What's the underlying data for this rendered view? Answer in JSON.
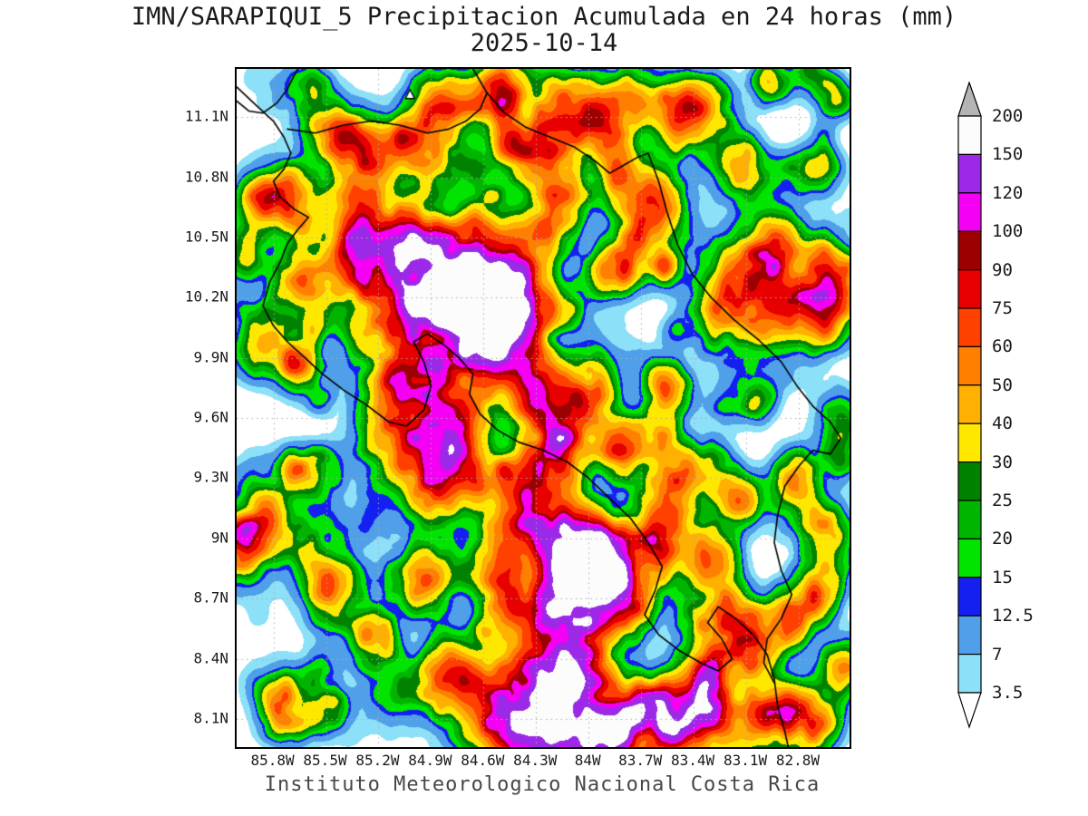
{
  "title": {
    "line1": "IMN/SARAPIQUI_5 Precipitacion Acumulada en 24 horas (mm)",
    "line2": "2025-10-14"
  },
  "footer": {
    "text": "Instituto Meteorologico Nacional Costa Rica"
  },
  "chart_data": {
    "type": "heatmap",
    "units": "mm",
    "variable": "Precipitacion Acumulada en 24 horas",
    "date": "2025-10-14",
    "source": "IMN/SARAPIQUI_5",
    "lon_range_w": [
      86.01,
      82.51
    ],
    "lat_range_n": [
      7.96,
      11.34
    ],
    "x_axis": {
      "values": [
        85.8,
        85.5,
        85.2,
        84.9,
        84.6,
        84.3,
        84.0,
        83.7,
        83.4,
        83.1,
        82.8
      ],
      "labels": [
        "85.8W",
        "85.5W",
        "85.2W",
        "84.9W",
        "84.6W",
        "84.3W",
        "84W",
        "83.7W",
        "83.4W",
        "83.1W",
        "82.8W"
      ]
    },
    "y_axis": {
      "values": [
        11.1,
        10.8,
        10.5,
        10.2,
        9.9,
        9.6,
        9.3,
        9.0,
        8.7,
        8.4,
        8.1
      ],
      "labels": [
        "11.1N",
        "10.8N",
        "10.5N",
        "10.2N",
        "9.9N",
        "9.6N",
        "9.3N",
        "9N",
        "8.7N",
        "8.4N",
        "8.1N"
      ]
    },
    "colorbar": {
      "levels": [
        3.5,
        7,
        12.5,
        15,
        20,
        25,
        30,
        40,
        50,
        60,
        75,
        90,
        100,
        120,
        150,
        200
      ],
      "band_colors": [
        "#8CE0F8",
        "#4FA0E8",
        "#1420F0",
        "#00E400",
        "#00B400",
        "#008200",
        "#FFE800",
        "#FFB000",
        "#FF8000",
        "#FF4000",
        "#E80000",
        "#9C0000",
        "#F400F4",
        "#9C28E8",
        "#FCFCFC"
      ],
      "above_color": "#B4B4B4",
      "below_color": "#FFFFFF"
    },
    "storm_cells": [
      [
        85.35,
        11.0,
        50,
        0.1
      ],
      [
        85.3,
        10.82,
        62,
        0.11
      ],
      [
        85.1,
        10.95,
        40,
        0.1
      ],
      [
        84.9,
        10.9,
        55,
        0.12
      ],
      [
        84.85,
        11.15,
        62,
        0.11
      ],
      [
        84.6,
        11.2,
        48,
        0.1
      ],
      [
        84.45,
        11.25,
        58,
        0.1
      ],
      [
        84.35,
        10.95,
        55,
        0.12
      ],
      [
        84.2,
        11.15,
        48,
        0.1
      ],
      [
        83.95,
        11.1,
        62,
        0.12
      ],
      [
        83.75,
        11.2,
        55,
        0.1
      ],
      [
        83.5,
        11.05,
        46,
        0.1
      ],
      [
        83.3,
        11.15,
        40,
        0.1
      ],
      [
        83.15,
        10.85,
        36,
        0.1
      ],
      [
        83.8,
        10.8,
        46,
        0.12
      ],
      [
        83.65,
        10.6,
        34,
        0.1
      ],
      [
        85.25,
        10.45,
        68,
        0.16
      ],
      [
        85.05,
        10.38,
        80,
        0.16
      ],
      [
        84.95,
        10.15,
        95,
        0.22
      ],
      [
        84.75,
        10.25,
        72,
        0.18
      ],
      [
        84.65,
        10.05,
        78,
        0.16
      ],
      [
        84.55,
        10.3,
        60,
        0.13
      ],
      [
        84.5,
        9.95,
        72,
        0.16
      ],
      [
        84.45,
        10.15,
        85,
        0.13
      ],
      [
        84.3,
        10.5,
        42,
        0.12
      ],
      [
        84.15,
        10.7,
        50,
        0.1
      ],
      [
        85.6,
        10.3,
        30,
        0.1
      ],
      [
        85.75,
        10.7,
        38,
        0.1
      ],
      [
        85.95,
        10.5,
        26,
        0.09
      ],
      [
        83.1,
        10.3,
        72,
        0.14
      ],
      [
        82.9,
        10.45,
        58,
        0.11
      ],
      [
        82.85,
        10.2,
        64,
        0.12
      ],
      [
        83.25,
        10.15,
        48,
        0.1
      ],
      [
        82.6,
        10.35,
        44,
        0.1
      ],
      [
        82.6,
        10.08,
        34,
        0.09
      ],
      [
        85.05,
        9.75,
        52,
        0.11
      ],
      [
        85.0,
        9.55,
        80,
        0.17
      ],
      [
        84.85,
        9.35,
        70,
        0.15
      ],
      [
        84.7,
        9.5,
        50,
        0.11
      ],
      [
        85.65,
        9.85,
        30,
        0.09
      ],
      [
        85.55,
        9.3,
        26,
        0.09
      ],
      [
        85.45,
        8.75,
        34,
        0.11
      ],
      [
        85.2,
        8.45,
        30,
        0.1
      ],
      [
        84.95,
        8.75,
        42,
        0.11
      ],
      [
        84.25,
        9.7,
        72,
        0.13
      ],
      [
        84.2,
        9.45,
        54,
        0.11
      ],
      [
        84.3,
        9.2,
        50,
        0.13
      ],
      [
        84.15,
        9.0,
        58,
        0.13
      ],
      [
        84.05,
        9.55,
        44,
        0.1
      ],
      [
        83.95,
        9.8,
        38,
        0.09
      ],
      [
        83.55,
        9.75,
        58,
        0.08
      ],
      [
        84.5,
        9.0,
        36,
        0.11
      ],
      [
        84.45,
        8.7,
        40,
        0.11
      ],
      [
        84.02,
        8.82,
        168,
        0.13
      ],
      [
        84.1,
        8.6,
        90,
        0.15
      ],
      [
        83.85,
        8.7,
        95,
        0.13
      ],
      [
        84.2,
        8.35,
        78,
        0.13
      ],
      [
        83.92,
        8.95,
        72,
        0.12
      ],
      [
        84.75,
        8.3,
        48,
        0.11
      ],
      [
        84.55,
        8.15,
        66,
        0.13
      ],
      [
        84.35,
        8.05,
        88,
        0.15
      ],
      [
        84.15,
        8.1,
        105,
        0.13
      ],
      [
        83.95,
        8.0,
        112,
        0.13
      ],
      [
        83.7,
        8.1,
        88,
        0.13
      ],
      [
        83.52,
        8.12,
        105,
        0.11
      ],
      [
        83.35,
        8.15,
        68,
        0.11
      ],
      [
        83.2,
        8.05,
        46,
        0.13
      ],
      [
        82.95,
        8.1,
        40,
        0.11
      ],
      [
        82.75,
        8.1,
        72,
        0.11
      ],
      [
        82.55,
        8.35,
        42,
        0.09
      ],
      [
        83.25,
        8.55,
        72,
        0.13
      ],
      [
        83.05,
        8.45,
        58,
        0.11
      ],
      [
        83.3,
        8.3,
        52,
        0.11
      ],
      [
        82.85,
        8.6,
        44,
        0.09
      ],
      [
        82.7,
        8.72,
        50,
        0.09
      ],
      [
        83.35,
        9.35,
        44,
        0.1
      ],
      [
        83.15,
        9.2,
        40,
        0.09
      ],
      [
        82.8,
        9.3,
        48,
        0.09
      ],
      [
        82.65,
        9.05,
        42,
        0.09
      ],
      [
        83.5,
        9.3,
        34,
        0.09
      ],
      [
        83.3,
        8.95,
        38,
        0.09
      ],
      [
        82.55,
        9.6,
        30,
        0.09
      ],
      [
        83.05,
        9.7,
        28,
        0.08
      ],
      [
        83.8,
        10.35,
        34,
        0.09
      ]
    ],
    "speckle": {
      "seed": 20251014,
      "count": 240,
      "amp_min": 3,
      "amp_max": 42,
      "r_min": 0.045,
      "r_max": 0.12
    },
    "noise": {
      "seed": 7,
      "scale1": 6,
      "scale2": 14
    },
    "coastlines": [
      [
        [
          86.01,
          11.25
        ],
        [
          85.9,
          11.16
        ],
        [
          85.8,
          11.08
        ],
        [
          85.74,
          11.0
        ],
        [
          85.7,
          10.92
        ],
        [
          85.74,
          10.84
        ],
        [
          85.8,
          10.78
        ],
        [
          85.76,
          10.7
        ],
        [
          85.68,
          10.64
        ],
        [
          85.6,
          10.6
        ],
        [
          85.66,
          10.54
        ],
        [
          85.72,
          10.47
        ],
        [
          85.76,
          10.38
        ],
        [
          85.82,
          10.28
        ],
        [
          85.86,
          10.16
        ],
        [
          85.8,
          10.06
        ],
        [
          85.72,
          9.98
        ],
        [
          85.62,
          9.9
        ],
        [
          85.52,
          9.82
        ],
        [
          85.4,
          9.74
        ],
        [
          85.26,
          9.66
        ],
        [
          85.14,
          9.58
        ],
        [
          85.04,
          9.56
        ],
        [
          84.94,
          9.64
        ],
        [
          84.9,
          9.76
        ],
        [
          84.94,
          9.88
        ],
        [
          85.0,
          9.98
        ],
        [
          84.92,
          10.02
        ],
        [
          84.82,
          9.96
        ],
        [
          84.74,
          9.9
        ],
        [
          84.66,
          9.82
        ],
        [
          84.68,
          9.72
        ],
        [
          84.62,
          9.62
        ],
        [
          84.52,
          9.54
        ],
        [
          84.4,
          9.48
        ],
        [
          84.26,
          9.44
        ],
        [
          84.12,
          9.38
        ],
        [
          84.0,
          9.3
        ],
        [
          83.88,
          9.2
        ],
        [
          83.76,
          9.1
        ],
        [
          83.66,
          8.98
        ],
        [
          83.58,
          8.86
        ],
        [
          83.62,
          8.74
        ],
        [
          83.68,
          8.62
        ],
        [
          83.6,
          8.52
        ],
        [
          83.48,
          8.44
        ],
        [
          83.36,
          8.38
        ],
        [
          83.26,
          8.34
        ],
        [
          83.18,
          8.4
        ],
        [
          83.24,
          8.5
        ],
        [
          83.32,
          8.58
        ],
        [
          83.26,
          8.66
        ],
        [
          83.16,
          8.6
        ],
        [
          83.06,
          8.52
        ],
        [
          82.98,
          8.42
        ],
        [
          82.94,
          8.3
        ],
        [
          82.92,
          8.16
        ],
        [
          82.88,
          8.04
        ],
        [
          82.86,
          7.96
        ]
      ],
      [
        [
          84.66,
          11.34
        ],
        [
          84.58,
          11.22
        ],
        [
          84.48,
          11.12
        ],
        [
          84.36,
          11.05
        ],
        [
          84.22,
          11.0
        ],
        [
          84.08,
          10.95
        ],
        [
          83.96,
          10.88
        ],
        [
          83.88,
          10.82
        ],
        [
          83.8,
          10.86
        ],
        [
          83.72,
          10.9
        ],
        [
          83.66,
          10.92
        ],
        [
          83.6,
          10.78
        ],
        [
          83.55,
          10.62
        ],
        [
          83.49,
          10.46
        ],
        [
          83.41,
          10.32
        ],
        [
          83.3,
          10.2
        ],
        [
          83.17,
          10.09
        ],
        [
          83.03,
          9.99
        ],
        [
          82.9,
          9.88
        ],
        [
          82.81,
          9.76
        ],
        [
          82.72,
          9.66
        ],
        [
          82.62,
          9.58
        ],
        [
          82.56,
          9.5
        ],
        [
          82.62,
          9.42
        ],
        [
          82.72,
          9.44
        ],
        [
          82.8,
          9.36
        ],
        [
          82.88,
          9.26
        ],
        [
          82.92,
          9.12
        ],
        [
          82.94,
          8.98
        ],
        [
          82.9,
          8.84
        ],
        [
          82.84,
          8.72
        ],
        [
          82.9,
          8.6
        ],
        [
          82.98,
          8.5
        ],
        [
          83.0,
          8.38
        ],
        [
          82.94,
          8.28
        ]
      ],
      [
        [
          86.01,
          11.18
        ],
        [
          85.94,
          11.13
        ],
        [
          85.86,
          11.12
        ],
        [
          85.78,
          11.17
        ],
        [
          85.72,
          11.24
        ],
        [
          85.68,
          11.31
        ],
        [
          85.66,
          11.34
        ]
      ],
      [
        [
          85.72,
          11.04
        ],
        [
          85.56,
          11.02
        ],
        [
          85.4,
          11.06
        ],
        [
          85.24,
          11.08
        ],
        [
          85.08,
          11.06
        ],
        [
          84.92,
          11.02
        ],
        [
          84.8,
          11.04
        ],
        [
          84.7,
          11.08
        ],
        [
          84.62,
          11.14
        ],
        [
          84.58,
          11.22
        ]
      ]
    ],
    "island_marker": [
      85.02,
      11.21
    ],
    "grid": {
      "color": "#ADADAD",
      "dash": [
        1.5,
        4
      ]
    }
  }
}
